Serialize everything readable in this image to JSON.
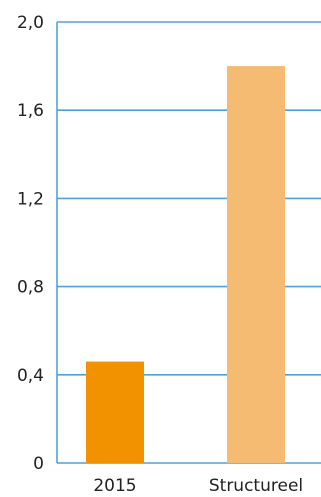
{
  "chart_data": {
    "type": "bar",
    "title": "",
    "xlabel": "",
    "ylabel": "",
    "categories": [
      "2015",
      "Structureel"
    ],
    "values": [
      0.46,
      1.8
    ],
    "ylim": [
      0,
      2.0
    ],
    "yticks": [
      0,
      0.4,
      0.8,
      1.2,
      1.6,
      2.0
    ],
    "ytick_labels": [
      "0",
      "0,4",
      "0,8",
      "1,2",
      "1,6",
      "2,0"
    ],
    "grid": true,
    "legend": "none",
    "colors": {
      "bars": [
        "#f39200",
        "#f5bb72"
      ],
      "grid": "#4aa3df",
      "axis": "#4aa3df",
      "text": "#222222"
    }
  }
}
